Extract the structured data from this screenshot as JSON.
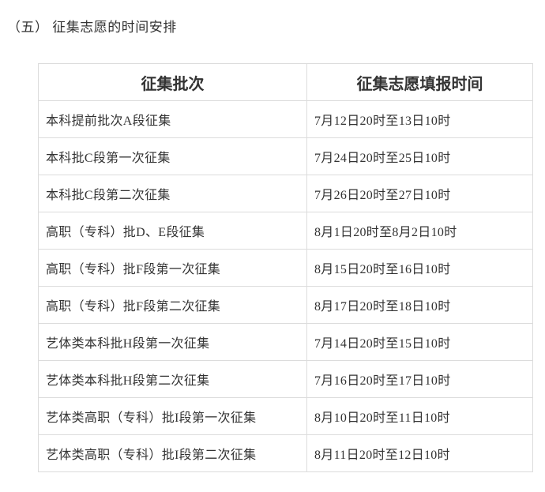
{
  "heading": "（五） 征集志愿的时间安排",
  "table": {
    "headers": [
      "征集批次",
      "征集志愿填报时间"
    ],
    "rows": [
      {
        "batch": "本科提前批次A段征集",
        "time": "7月12日20时至13日10时"
      },
      {
        "batch": "本科批C段第一次征集",
        "time": "7月24日20时至25日10时"
      },
      {
        "batch": "本科批C段第二次征集",
        "time": "7月26日20时至27日10时"
      },
      {
        "batch": "高职（专科）批D、E段征集",
        "time": "8月1日20时至8月2日10时"
      },
      {
        "batch": "高职（专科）批F段第一次征集",
        "time": "8月15日20时至16日10时"
      },
      {
        "batch": "高职（专科）批F段第二次征集",
        "time": "8月17日20时至18日10时"
      },
      {
        "batch": "艺体类本科批H段第一次征集",
        "time": "7月14日20时至15日10时"
      },
      {
        "batch": "艺体类本科批H段第二次征集",
        "time": "7月16日20时至17日10时"
      },
      {
        "batch": "艺体类高职（专科）批I段第一次征集",
        "time": "8月10日20时至11日10时"
      },
      {
        "batch": "艺体类高职（专科）批I段第二次征集",
        "time": "8月11日20时至12日10时"
      }
    ]
  },
  "colors": {
    "text": "#333333",
    "border": "#dcdcdc",
    "background": "#ffffff"
  }
}
